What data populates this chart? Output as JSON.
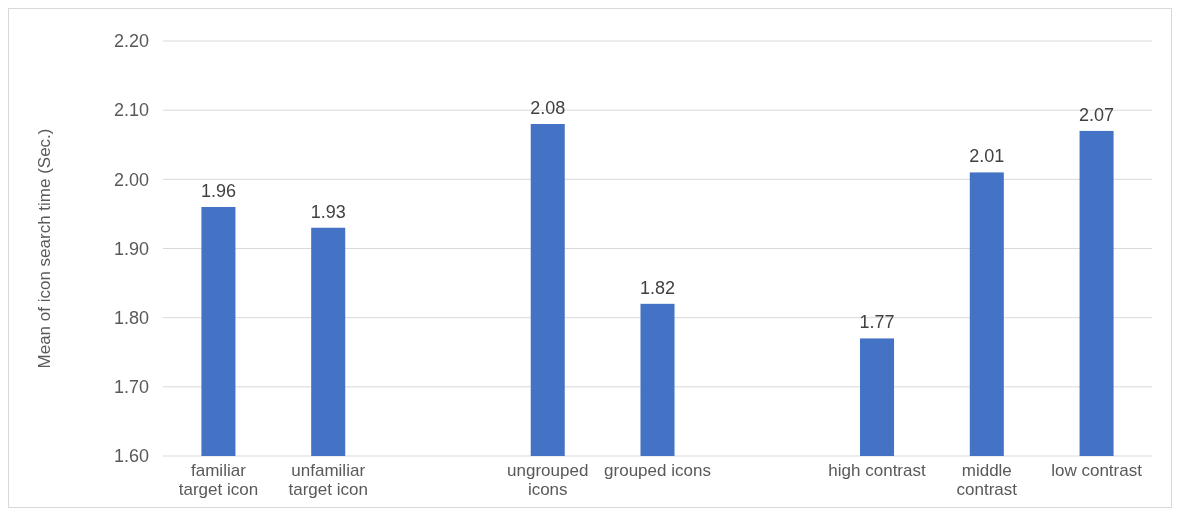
{
  "chart_data": {
    "type": "bar",
    "ylabel": "Mean of icon search time (Sec.)",
    "categories": [
      "familiar target icon",
      "unfamiliar target icon",
      null,
      "ungrouped icons",
      "grouped icons",
      null,
      "high contrast",
      "middle contrast",
      "low contrast"
    ],
    "values": [
      1.96,
      1.93,
      null,
      2.08,
      1.82,
      null,
      1.77,
      2.01,
      2.07
    ],
    "color": "#4472c4",
    "data_labels": true,
    "grid": "y",
    "ylim": [
      1.6,
      2.2
    ],
    "yticks": [
      {
        "value": 1.6,
        "label": "1.60"
      },
      {
        "value": 1.7,
        "label": "1.70"
      },
      {
        "value": 1.8,
        "label": "1.80"
      },
      {
        "value": 1.9,
        "label": "1.90"
      },
      {
        "value": 2.0,
        "label": "2.00"
      },
      {
        "value": 2.1,
        "label": "2.10"
      },
      {
        "value": 2.2,
        "label": "2.20"
      }
    ]
  }
}
